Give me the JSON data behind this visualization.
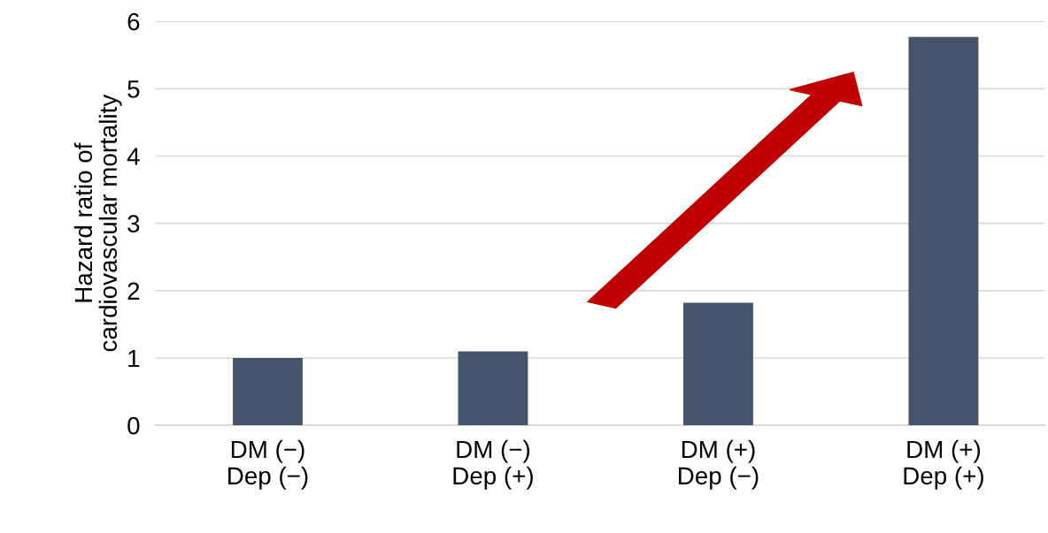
{
  "chart_data": {
    "type": "bar",
    "ylabel": "Hazard ratio of\ncardiovascular mortality",
    "categories": [
      "DM (−)\nDep (−)",
      "DM (−)\nDep (+)",
      "DM (+)\nDep (−)",
      "DM (+)\nDep (+)"
    ],
    "values": [
      1.0,
      1.1,
      1.82,
      5.77
    ],
    "color": "#44546a",
    "ylim": [
      0,
      6
    ],
    "yticks": [
      0,
      1,
      2,
      3,
      4,
      5,
      6
    ],
    "grid": "y"
  }
}
